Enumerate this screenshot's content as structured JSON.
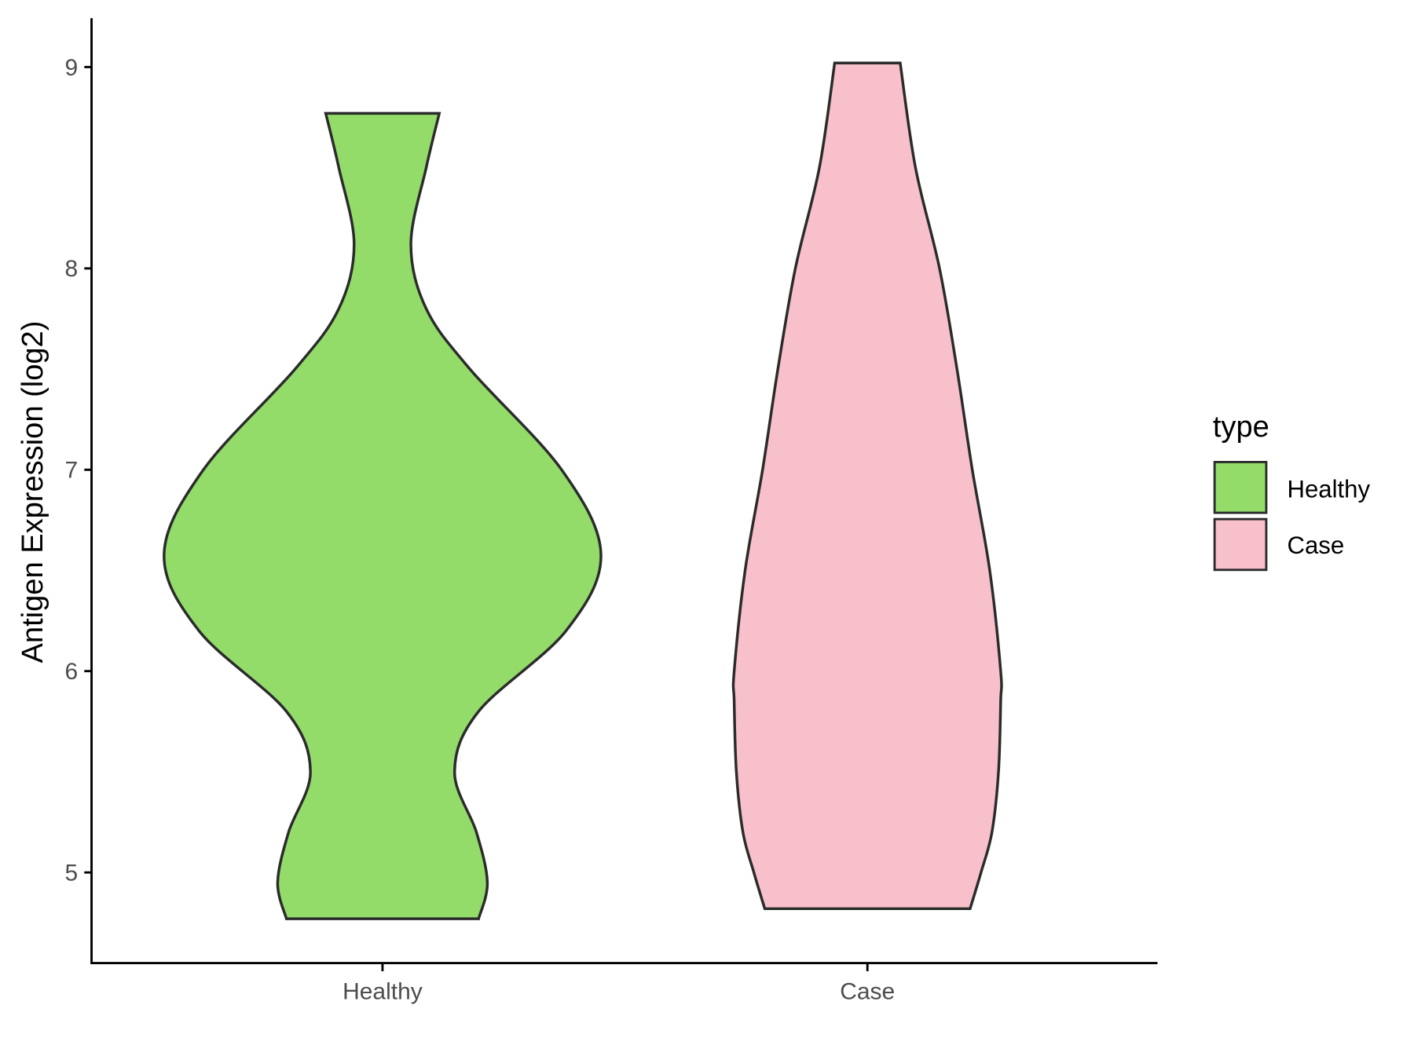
{
  "chart_data": {
    "type": "violin",
    "title": "",
    "xlabel": "",
    "ylabel": "Antigen Expression (log2)",
    "ylim": [
      4.55,
      9.25
    ],
    "yticks": [
      5,
      6,
      7,
      8,
      9
    ],
    "categories": [
      "Healthy",
      "Case"
    ],
    "grid": false,
    "legend": {
      "title": "type",
      "placement": "right",
      "entries": [
        "Healthy",
        "Case"
      ]
    },
    "colors": {
      "Healthy": "#93DC6A",
      "Case": "#F8C0CB",
      "outline": "#2b2b2b"
    },
    "series": [
      {
        "name": "Healthy",
        "range": [
          4.77,
          8.77
        ],
        "density_profile": [
          [
            4.77,
            0.44
          ],
          [
            4.95,
            0.48
          ],
          [
            5.2,
            0.43
          ],
          [
            5.5,
            0.33
          ],
          [
            5.8,
            0.44
          ],
          [
            6.2,
            0.84
          ],
          [
            6.58,
            1.0
          ],
          [
            7.0,
            0.82
          ],
          [
            7.5,
            0.4
          ],
          [
            7.8,
            0.2
          ],
          [
            8.12,
            0.13
          ],
          [
            8.5,
            0.2
          ],
          [
            8.77,
            0.26
          ]
        ]
      },
      {
        "name": "Case",
        "range": [
          4.82,
          9.02
        ],
        "density_profile": [
          [
            4.82,
            0.47
          ],
          [
            5.0,
            0.52
          ],
          [
            5.2,
            0.57
          ],
          [
            5.5,
            0.6
          ],
          [
            5.85,
            0.61
          ],
          [
            6.0,
            0.61
          ],
          [
            6.5,
            0.56
          ],
          [
            7.0,
            0.48
          ],
          [
            7.5,
            0.41
          ],
          [
            8.0,
            0.33
          ],
          [
            8.5,
            0.22
          ],
          [
            9.02,
            0.15
          ]
        ]
      }
    ]
  }
}
